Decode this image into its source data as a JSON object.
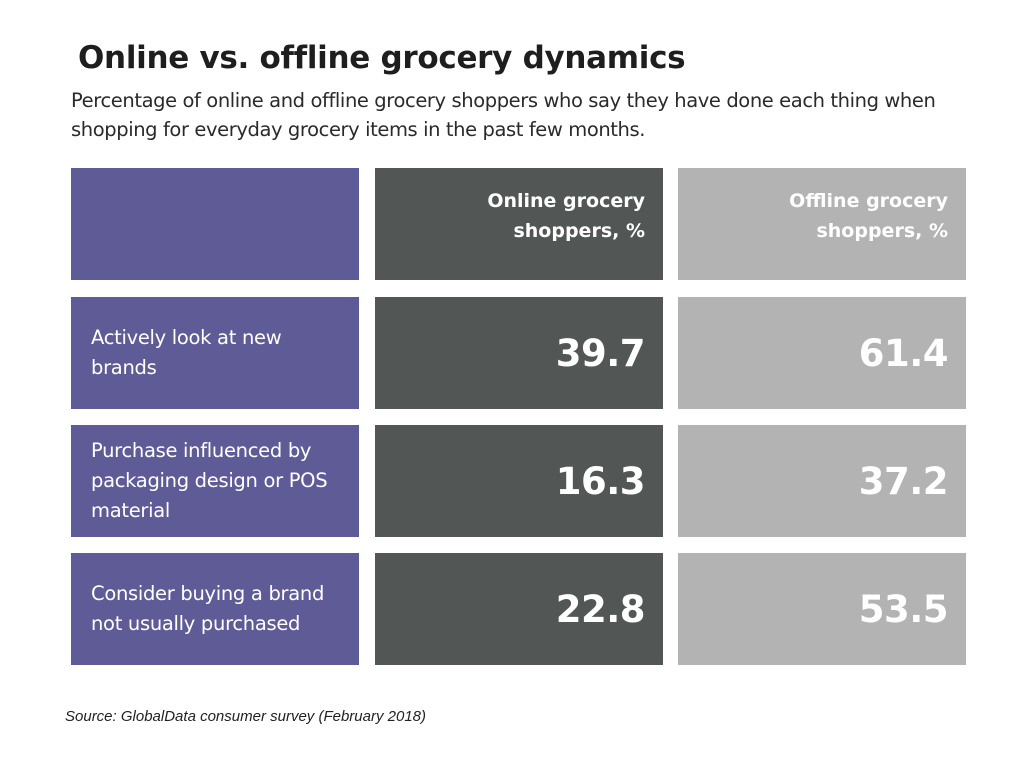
{
  "title": "Online vs. offline grocery dynamics",
  "subtitle": "Percentage of online and offline grocery shoppers who say they have done each thing when shopping for everyday grocery items in the past few months.",
  "source": "Source: GlobalData consumer survey (February 2018)",
  "colors": {
    "label_column": "#5e5b96",
    "online_column": "#525655",
    "offline_column": "#b3b3b3"
  },
  "chart_data": {
    "type": "table",
    "title": "Online vs. offline grocery dynamics",
    "columns": [
      "Online grocery shoppers, %",
      "Offline grocery shoppers, %"
    ],
    "rows": [
      {
        "label": "Actively look at new brands",
        "values": [
          "39.7",
          "61.4"
        ]
      },
      {
        "label": "Purchase influenced by packaging design or POS material",
        "values": [
          "16.3",
          "37.2"
        ]
      },
      {
        "label": "Consider buying a brand not usually purchased",
        "values": [
          "22.8",
          "53.5"
        ]
      }
    ]
  }
}
